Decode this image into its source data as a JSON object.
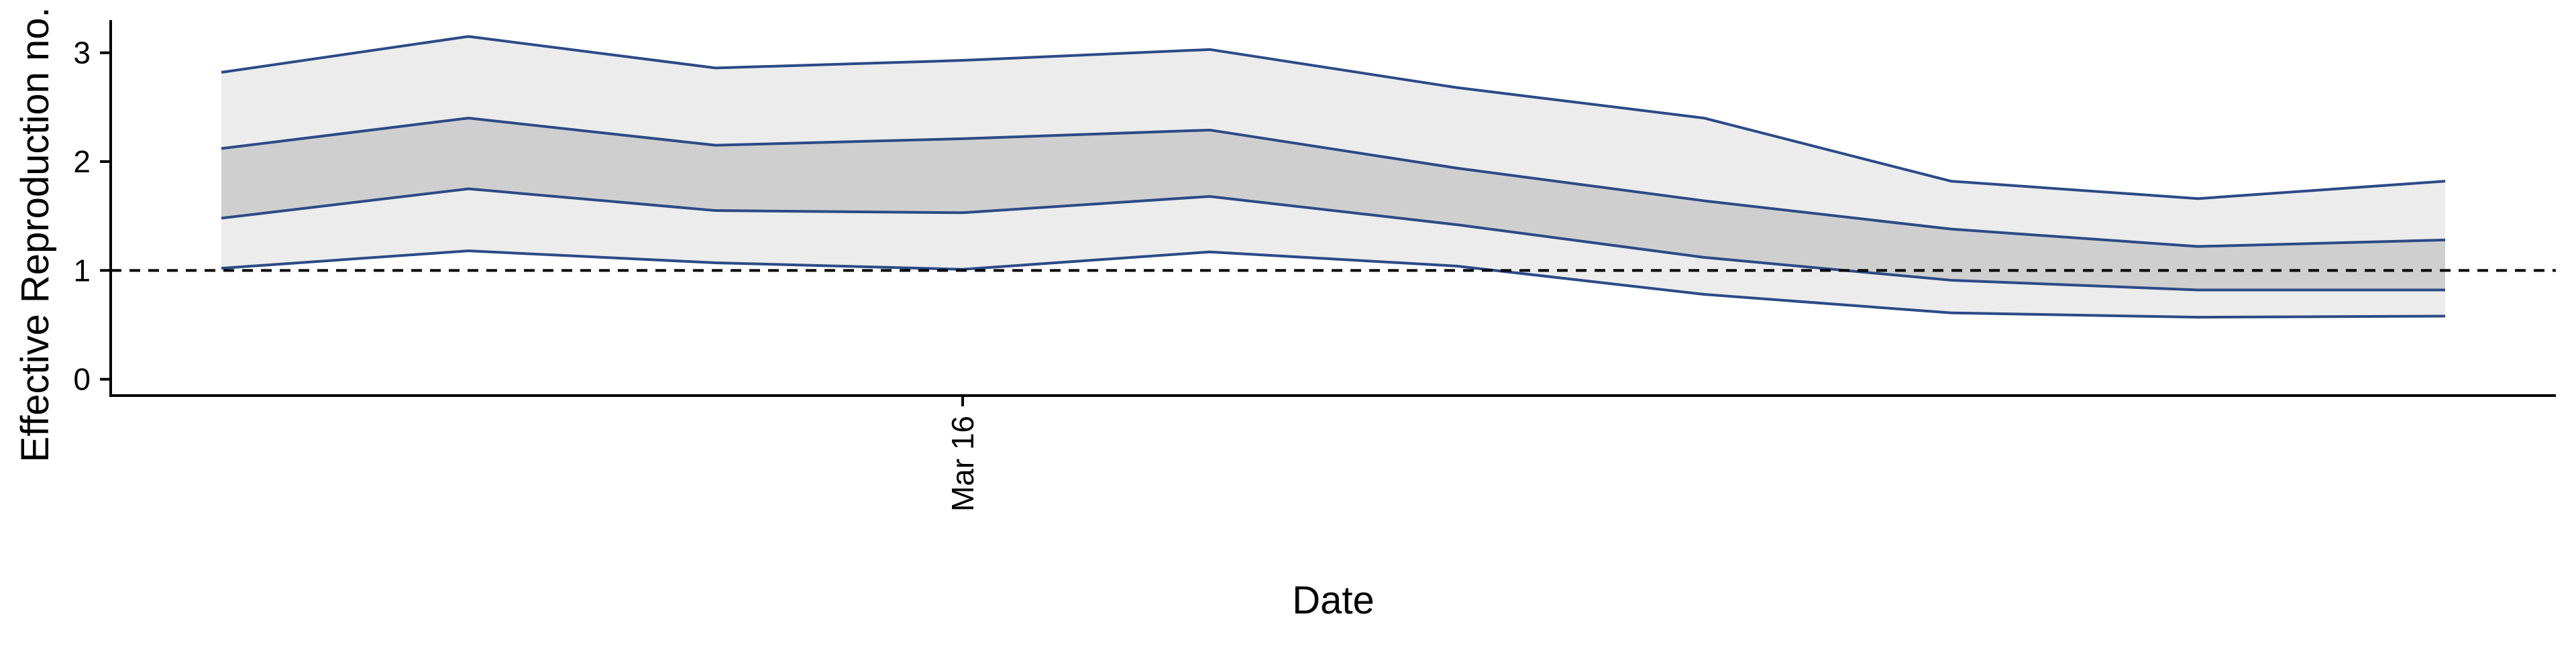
{
  "chart_data": {
    "type": "line",
    "title": "",
    "xlabel": "Date",
    "ylabel": "Effective Reproduction no.",
    "x": [
      0,
      1,
      2,
      3,
      4,
      5,
      6,
      7,
      8,
      9
    ],
    "x_ticks": [
      {
        "x": 3,
        "label": "Mar 16"
      }
    ],
    "ylim": [
      -0.15,
      3.3
    ],
    "y_ticks": [
      0,
      1,
      2,
      3
    ],
    "reference_line": {
      "y": 1,
      "style": "dashed"
    },
    "grid": false,
    "series": [
      {
        "values": [
          1.02,
          1.18,
          1.07,
          1.01,
          1.17,
          1.04,
          0.78,
          0.61,
          0.57,
          0.58
        ]
      },
      {
        "values": [
          1.48,
          1.75,
          1.55,
          1.53,
          1.68,
          1.42,
          1.12,
          0.91,
          0.82,
          0.82
        ]
      },
      {
        "values": [
          2.12,
          2.4,
          2.15,
          2.21,
          2.29,
          1.94,
          1.64,
          1.38,
          1.22,
          1.28
        ]
      },
      {
        "values": [
          2.82,
          3.15,
          2.86,
          2.93,
          3.03,
          2.68,
          2.4,
          1.82,
          1.66,
          1.82
        ]
      }
    ],
    "bands": [
      {
        "lower": 0,
        "upper": 3,
        "fill": "#ececec"
      },
      {
        "lower": 1,
        "upper": 2,
        "fill": "#cfcfcf"
      }
    ],
    "line_color": "#2b4a87"
  }
}
